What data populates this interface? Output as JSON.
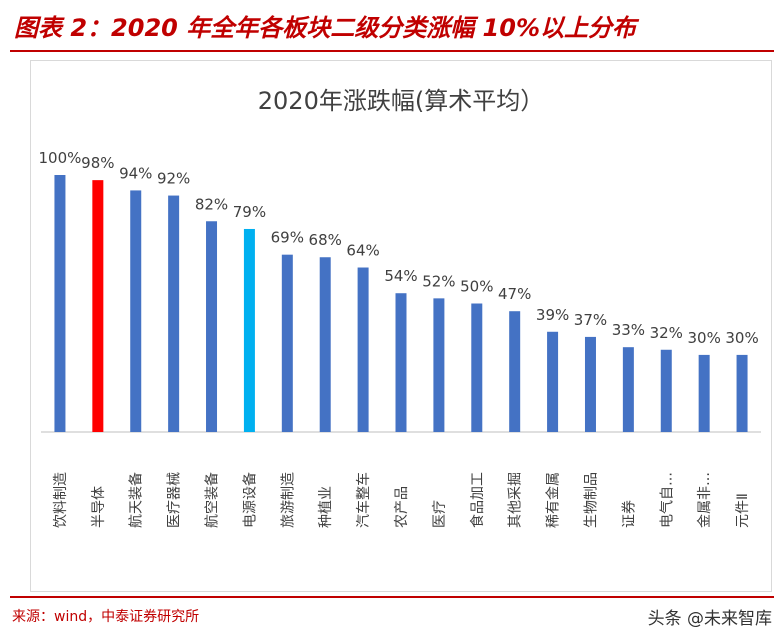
{
  "header": {
    "title": "图表 2：2020 年全年各板块二级分类涨幅 10%以上分布"
  },
  "footer": {
    "source": "来源：wind，中泰证券研究所",
    "watermark": "头条 @未来智库"
  },
  "colors": {
    "default_bar": "#4472c4",
    "highlight_red": "#ff0000",
    "highlight_cyan": "#00b0f0",
    "header": "#c00000"
  },
  "chart_data": {
    "type": "bar",
    "title": "2020年涨跌幅(算术平均）",
    "xlabel": "",
    "ylabel": "",
    "ylim": [
      0,
      100
    ],
    "grid": false,
    "legend": "none",
    "categories": [
      "饮料制造",
      "半导体",
      "航天装备",
      "医疗器械",
      "航空装备",
      "电源设备",
      "旅游制造",
      "种植业",
      "汽车整车",
      "农产品",
      "医疗",
      "食品加工",
      "其他采掘",
      "稀有金属",
      "生物制品",
      "证券",
      "电气自…",
      "金属非…",
      "元件Ⅱ"
    ],
    "values": [
      100,
      98,
      94,
      92,
      82,
      79,
      69,
      68,
      64,
      54,
      52,
      50,
      47,
      39,
      37,
      33,
      32,
      30,
      30
    ],
    "labels": [
      "100%",
      "98%",
      "94%",
      "92%",
      "82%",
      "79%",
      "69%",
      "68%",
      "64%",
      "54%",
      "52%",
      "50%",
      "47%",
      "39%",
      "37%",
      "33%",
      "32%",
      "30%",
      "30%"
    ],
    "bar_colors": [
      "#4472c4",
      "#ff0000",
      "#4472c4",
      "#4472c4",
      "#4472c4",
      "#00b0f0",
      "#4472c4",
      "#4472c4",
      "#4472c4",
      "#4472c4",
      "#4472c4",
      "#4472c4",
      "#4472c4",
      "#4472c4",
      "#4472c4",
      "#4472c4",
      "#4472c4",
      "#4472c4",
      "#4472c4"
    ]
  }
}
